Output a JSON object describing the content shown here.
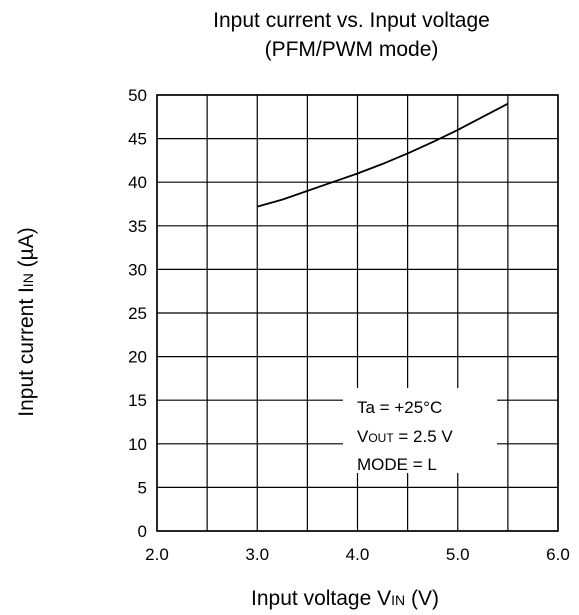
{
  "title_line1": "Input current vs. Input voltage",
  "title_line2": "(PFM/PWM mode)",
  "annotations": {
    "ta": "Ta = +25°C",
    "vout_main": "V",
    "vout_sub": "OUT",
    "vout_rest": " = 2.5 V",
    "mode": "MODE = L"
  },
  "chart_data": {
    "type": "line",
    "title": "Input current vs. Input voltage (PFM/PWM mode)",
    "xlabel": "Input voltage VIN (V)",
    "xlabel_parts": {
      "main": "Input voltage V",
      "sub": "IN",
      "rest": " (V)"
    },
    "ylabel": "Input current IIN (µA)",
    "ylabel_parts": {
      "main": "Input current I",
      "sub": "IN",
      "rest": " (µA)"
    },
    "xlim": [
      2.0,
      6.0
    ],
    "ylim": [
      0,
      50
    ],
    "xticks": [
      2.0,
      2.5,
      3.0,
      3.5,
      4.0,
      4.5,
      5.0,
      5.5,
      6.0
    ],
    "xtick_labels": [
      "2.0",
      "3.0",
      "4.0",
      "5.0",
      "6.0"
    ],
    "yticks": [
      0,
      5,
      10,
      15,
      20,
      25,
      30,
      35,
      40,
      45,
      50
    ],
    "grid": true,
    "series": [
      {
        "x": [
          3.0,
          3.25,
          3.5,
          3.75,
          4.0,
          4.25,
          4.5,
          4.75,
          5.0,
          5.25,
          5.5
        ],
        "y": [
          37.2,
          38.0,
          39.0,
          40.0,
          41.0,
          42.1,
          43.3,
          44.6,
          46.0,
          47.5,
          49.0
        ]
      }
    ]
  }
}
